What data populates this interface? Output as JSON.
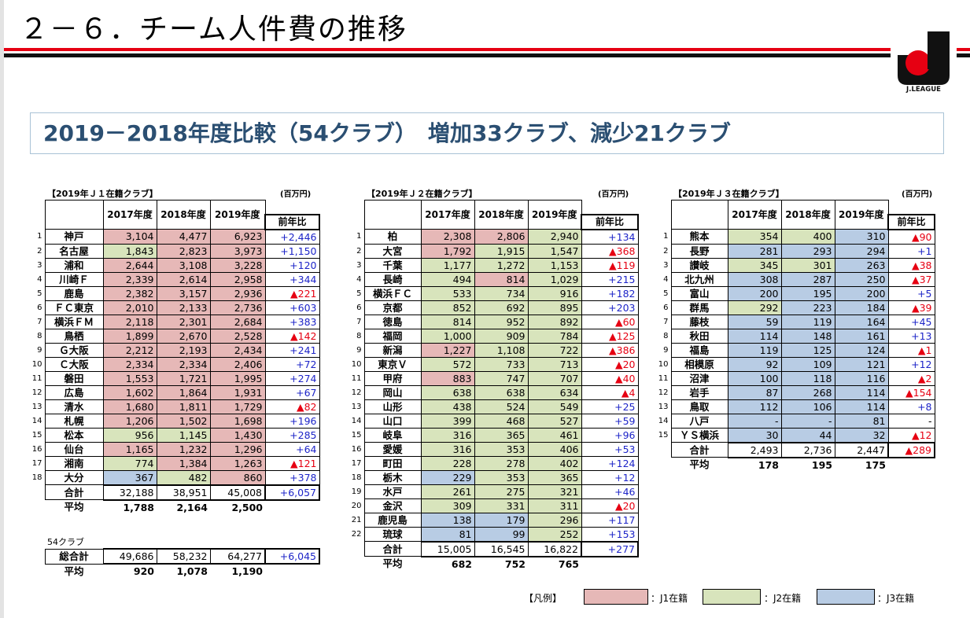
{
  "title": "２－６．チーム人件費の推移",
  "logo_text": "J.LEAGUE",
  "subtitle": "2019－2018年度比較（54クラブ）　増加33クラブ、減少21クラブ",
  "colors": {
    "j1": "#e6b8b7",
    "j2": "#d8e4bc",
    "j3": "#b8cce4",
    "plus": "#1d24c8",
    "minus": "#e60012"
  },
  "headers": {
    "y2017": "2017年度",
    "y2018": "2018年度",
    "y2019": "2019年度",
    "diff": "前年比"
  },
  "j1": {
    "caption": "【2019年Ｊ１在籍クラブ】",
    "unit": "(百万円)",
    "rows": [
      {
        "rank": "1",
        "club": "神戸",
        "v2017": "3,104",
        "c2017": "j1",
        "v2018": "4,477",
        "c2018": "j1",
        "v2019": "6,923",
        "c2019": "j1",
        "diff": "+2,446",
        "sign": "plus"
      },
      {
        "rank": "2",
        "club": "名古屋",
        "v2017": "1,843",
        "c2017": "j2",
        "v2018": "2,823",
        "c2018": "j1",
        "v2019": "3,973",
        "c2019": "j1",
        "diff": "+1,150",
        "sign": "plus"
      },
      {
        "rank": "3",
        "club": "浦和",
        "v2017": "2,644",
        "c2017": "j1",
        "v2018": "3,108",
        "c2018": "j1",
        "v2019": "3,228",
        "c2019": "j1",
        "diff": "+120",
        "sign": "plus"
      },
      {
        "rank": "4",
        "club": "川崎Ｆ",
        "v2017": "2,339",
        "c2017": "j1",
        "v2018": "2,614",
        "c2018": "j1",
        "v2019": "2,958",
        "c2019": "j1",
        "diff": "+344",
        "sign": "plus"
      },
      {
        "rank": "5",
        "club": "鹿島",
        "v2017": "2,382",
        "c2017": "j1",
        "v2018": "3,157",
        "c2018": "j1",
        "v2019": "2,936",
        "c2019": "j1",
        "diff": "▲221",
        "sign": "minus"
      },
      {
        "rank": "6",
        "club": "ＦＣ東京",
        "v2017": "2,010",
        "c2017": "j1",
        "v2018": "2,133",
        "c2018": "j1",
        "v2019": "2,736",
        "c2019": "j1",
        "diff": "+603",
        "sign": "plus"
      },
      {
        "rank": "7",
        "club": "横浜ＦＭ",
        "v2017": "2,118",
        "c2017": "j1",
        "v2018": "2,301",
        "c2018": "j1",
        "v2019": "2,684",
        "c2019": "j1",
        "diff": "+383",
        "sign": "plus"
      },
      {
        "rank": "8",
        "club": "鳥栖",
        "v2017": "1,899",
        "c2017": "j1",
        "v2018": "2,670",
        "c2018": "j1",
        "v2019": "2,528",
        "c2019": "j1",
        "diff": "▲142",
        "sign": "minus"
      },
      {
        "rank": "9",
        "club": "Ｇ大阪",
        "v2017": "2,212",
        "c2017": "j1",
        "v2018": "2,193",
        "c2018": "j1",
        "v2019": "2,434",
        "c2019": "j1",
        "diff": "+241",
        "sign": "plus"
      },
      {
        "rank": "10",
        "club": "Ｃ大阪",
        "v2017": "2,334",
        "c2017": "j1",
        "v2018": "2,334",
        "c2018": "j1",
        "v2019": "2,406",
        "c2019": "j1",
        "diff": "+72",
        "sign": "plus"
      },
      {
        "rank": "11",
        "club": "磐田",
        "v2017": "1,553",
        "c2017": "j1",
        "v2018": "1,721",
        "c2018": "j1",
        "v2019": "1,995",
        "c2019": "j1",
        "diff": "+274",
        "sign": "plus"
      },
      {
        "rank": "12",
        "club": "広島",
        "v2017": "1,602",
        "c2017": "j1",
        "v2018": "1,864",
        "c2018": "j1",
        "v2019": "1,931",
        "c2019": "j1",
        "diff": "+67",
        "sign": "plus"
      },
      {
        "rank": "13",
        "club": "清水",
        "v2017": "1,680",
        "c2017": "j1",
        "v2018": "1,811",
        "c2018": "j1",
        "v2019": "1,729",
        "c2019": "j1",
        "diff": "▲82",
        "sign": "minus"
      },
      {
        "rank": "14",
        "club": "札幌",
        "v2017": "1,206",
        "c2017": "j1",
        "v2018": "1,502",
        "c2018": "j1",
        "v2019": "1,698",
        "c2019": "j1",
        "diff": "+196",
        "sign": "plus"
      },
      {
        "rank": "15",
        "club": "松本",
        "v2017": "956",
        "c2017": "j2",
        "v2018": "1,145",
        "c2018": "j2",
        "v2019": "1,430",
        "c2019": "j1",
        "diff": "+285",
        "sign": "plus"
      },
      {
        "rank": "16",
        "club": "仙台",
        "v2017": "1,165",
        "c2017": "j1",
        "v2018": "1,232",
        "c2018": "j1",
        "v2019": "1,296",
        "c2019": "j1",
        "diff": "+64",
        "sign": "plus"
      },
      {
        "rank": "17",
        "club": "湘南",
        "v2017": "774",
        "c2017": "j2",
        "v2018": "1,384",
        "c2018": "j1",
        "v2019": "1,263",
        "c2019": "j1",
        "diff": "▲121",
        "sign": "minus"
      },
      {
        "rank": "18",
        "club": "大分",
        "v2017": "367",
        "c2017": "j3",
        "v2018": "482",
        "c2018": "j2",
        "v2019": "860",
        "c2019": "j1",
        "diff": "+378",
        "sign": "plus"
      }
    ],
    "total": {
      "label": "合計",
      "v2017": "32,188",
      "v2018": "38,951",
      "v2019": "45,008",
      "diff": "+6,057",
      "sign": "plus"
    },
    "average": {
      "label": "平均",
      "v2017": "1,788",
      "v2018": "2,164",
      "v2019": "2,500"
    },
    "all_caption": "54クラブ",
    "grand_total": {
      "label": "総合計",
      "v2017": "49,686",
      "v2018": "58,232",
      "v2019": "64,277",
      "diff": "+6,045",
      "sign": "plus"
    },
    "grand_average": {
      "label": "平均",
      "v2017": "920",
      "v2018": "1,078",
      "v2019": "1,190"
    }
  },
  "j2": {
    "caption": "【2019年Ｊ２在籍クラブ】",
    "unit": "(百万円)",
    "rows": [
      {
        "rank": "1",
        "club": "柏",
        "v2017": "2,308",
        "c2017": "j1",
        "v2018": "2,806",
        "c2018": "j1",
        "v2019": "2,940",
        "c2019": "j2",
        "diff": "+134",
        "sign": "plus"
      },
      {
        "rank": "2",
        "club": "大宮",
        "v2017": "1,792",
        "c2017": "j1",
        "v2018": "1,915",
        "c2018": "j2",
        "v2019": "1,547",
        "c2019": "j2",
        "diff": "▲368",
        "sign": "minus"
      },
      {
        "rank": "3",
        "club": "千葉",
        "v2017": "1,177",
        "c2017": "j2",
        "v2018": "1,272",
        "c2018": "j2",
        "v2019": "1,153",
        "c2019": "j2",
        "diff": "▲119",
        "sign": "minus"
      },
      {
        "rank": "4",
        "club": "長崎",
        "v2017": "494",
        "c2017": "j2",
        "v2018": "814",
        "c2018": "j1",
        "v2019": "1,029",
        "c2019": "j2",
        "diff": "+215",
        "sign": "plus"
      },
      {
        "rank": "5",
        "club": "横浜ＦＣ",
        "v2017": "533",
        "c2017": "j2",
        "v2018": "734",
        "c2018": "j2",
        "v2019": "916",
        "c2019": "j2",
        "diff": "+182",
        "sign": "plus"
      },
      {
        "rank": "6",
        "club": "京都",
        "v2017": "852",
        "c2017": "j2",
        "v2018": "692",
        "c2018": "j2",
        "v2019": "895",
        "c2019": "j2",
        "diff": "+203",
        "sign": "plus"
      },
      {
        "rank": "7",
        "club": "徳島",
        "v2017": "814",
        "c2017": "j2",
        "v2018": "952",
        "c2018": "j2",
        "v2019": "892",
        "c2019": "j2",
        "diff": "▲60",
        "sign": "minus"
      },
      {
        "rank": "8",
        "club": "福岡",
        "v2017": "1,000",
        "c2017": "j2",
        "v2018": "909",
        "c2018": "j2",
        "v2019": "784",
        "c2019": "j2",
        "diff": "▲125",
        "sign": "minus"
      },
      {
        "rank": "9",
        "club": "新潟",
        "v2017": "1,227",
        "c2017": "j1",
        "v2018": "1,108",
        "c2018": "j2",
        "v2019": "722",
        "c2019": "j2",
        "diff": "▲386",
        "sign": "minus"
      },
      {
        "rank": "10",
        "club": "東京Ｖ",
        "v2017": "572",
        "c2017": "j2",
        "v2018": "733",
        "c2018": "j2",
        "v2019": "713",
        "c2019": "j2",
        "diff": "▲20",
        "sign": "minus"
      },
      {
        "rank": "11",
        "club": "甲府",
        "v2017": "883",
        "c2017": "j1",
        "v2018": "747",
        "c2018": "j2",
        "v2019": "707",
        "c2019": "j2",
        "diff": "▲40",
        "sign": "minus"
      },
      {
        "rank": "12",
        "club": "岡山",
        "v2017": "638",
        "c2017": "j2",
        "v2018": "638",
        "c2018": "j2",
        "v2019": "634",
        "c2019": "j2",
        "diff": "▲4",
        "sign": "minus"
      },
      {
        "rank": "13",
        "club": "山形",
        "v2017": "438",
        "c2017": "j2",
        "v2018": "524",
        "c2018": "j2",
        "v2019": "549",
        "c2019": "j2",
        "diff": "+25",
        "sign": "plus"
      },
      {
        "rank": "14",
        "club": "山口",
        "v2017": "399",
        "c2017": "j2",
        "v2018": "468",
        "c2018": "j2",
        "v2019": "527",
        "c2019": "j2",
        "diff": "+59",
        "sign": "plus"
      },
      {
        "rank": "15",
        "club": "岐阜",
        "v2017": "316",
        "c2017": "j2",
        "v2018": "365",
        "c2018": "j2",
        "v2019": "461",
        "c2019": "j2",
        "diff": "+96",
        "sign": "plus"
      },
      {
        "rank": "16",
        "club": "愛媛",
        "v2017": "316",
        "c2017": "j2",
        "v2018": "353",
        "c2018": "j2",
        "v2019": "406",
        "c2019": "j2",
        "diff": "+53",
        "sign": "plus"
      },
      {
        "rank": "17",
        "club": "町田",
        "v2017": "228",
        "c2017": "j2",
        "v2018": "278",
        "c2018": "j2",
        "v2019": "402",
        "c2019": "j2",
        "diff": "+124",
        "sign": "plus"
      },
      {
        "rank": "18",
        "club": "栃木",
        "v2017": "229",
        "c2017": "j3",
        "v2018": "353",
        "c2018": "j2",
        "v2019": "365",
        "c2019": "j2",
        "diff": "+12",
        "sign": "plus"
      },
      {
        "rank": "19",
        "club": "水戸",
        "v2017": "261",
        "c2017": "j2",
        "v2018": "275",
        "c2018": "j2",
        "v2019": "321",
        "c2019": "j2",
        "diff": "+46",
        "sign": "plus"
      },
      {
        "rank": "20",
        "club": "金沢",
        "v2017": "309",
        "c2017": "j2",
        "v2018": "331",
        "c2018": "j2",
        "v2019": "311",
        "c2019": "j2",
        "diff": "▲20",
        "sign": "minus"
      },
      {
        "rank": "21",
        "club": "鹿児島",
        "v2017": "138",
        "c2017": "j3",
        "v2018": "179",
        "c2018": "j3",
        "v2019": "296",
        "c2019": "j2",
        "diff": "+117",
        "sign": "plus"
      },
      {
        "rank": "22",
        "club": "琉球",
        "v2017": "81",
        "c2017": "j3",
        "v2018": "99",
        "c2018": "j3",
        "v2019": "252",
        "c2019": "j2",
        "diff": "+153",
        "sign": "plus"
      }
    ],
    "total": {
      "label": "合計",
      "v2017": "15,005",
      "v2018": "16,545",
      "v2019": "16,822",
      "diff": "+277",
      "sign": "plus"
    },
    "average": {
      "label": "平均",
      "v2017": "682",
      "v2018": "752",
      "v2019": "765"
    }
  },
  "j3": {
    "caption": "【2019年Ｊ３在籍クラブ】",
    "unit": "(百万円)",
    "rows": [
      {
        "rank": "1",
        "club": "熊本",
        "v2017": "354",
        "c2017": "j2",
        "v2018": "400",
        "c2018": "j2",
        "v2019": "310",
        "c2019": "j3",
        "diff": "▲90",
        "sign": "minus"
      },
      {
        "rank": "2",
        "club": "長野",
        "v2017": "281",
        "c2017": "j3",
        "v2018": "293",
        "c2018": "j3",
        "v2019": "294",
        "c2019": "j3",
        "diff": "+1",
        "sign": "plus"
      },
      {
        "rank": "3",
        "club": "讃岐",
        "v2017": "345",
        "c2017": "j2",
        "v2018": "301",
        "c2018": "j2",
        "v2019": "263",
        "c2019": "j3",
        "diff": "▲38",
        "sign": "minus"
      },
      {
        "rank": "4",
        "club": "北九州",
        "v2017": "308",
        "c2017": "j3",
        "v2018": "287",
        "c2018": "j3",
        "v2019": "250",
        "c2019": "j3",
        "diff": "▲37",
        "sign": "minus"
      },
      {
        "rank": "5",
        "club": "富山",
        "v2017": "200",
        "c2017": "j3",
        "v2018": "195",
        "c2018": "j3",
        "v2019": "200",
        "c2019": "j3",
        "diff": "+5",
        "sign": "plus"
      },
      {
        "rank": "6",
        "club": "群馬",
        "v2017": "292",
        "c2017": "j2",
        "v2018": "223",
        "c2018": "j3",
        "v2019": "184",
        "c2019": "j3",
        "diff": "▲39",
        "sign": "minus"
      },
      {
        "rank": "7",
        "club": "藤枝",
        "v2017": "59",
        "c2017": "j3",
        "v2018": "119",
        "c2018": "j3",
        "v2019": "164",
        "c2019": "j3",
        "diff": "+45",
        "sign": "plus"
      },
      {
        "rank": "8",
        "club": "秋田",
        "v2017": "114",
        "c2017": "j3",
        "v2018": "148",
        "c2018": "j3",
        "v2019": "161",
        "c2019": "j3",
        "diff": "+13",
        "sign": "plus"
      },
      {
        "rank": "9",
        "club": "福島",
        "v2017": "119",
        "c2017": "j3",
        "v2018": "125",
        "c2018": "j3",
        "v2019": "124",
        "c2019": "j3",
        "diff": "▲1",
        "sign": "minus"
      },
      {
        "rank": "10",
        "club": "相模原",
        "v2017": "92",
        "c2017": "j3",
        "v2018": "109",
        "c2018": "j3",
        "v2019": "121",
        "c2019": "j3",
        "diff": "+12",
        "sign": "plus"
      },
      {
        "rank": "11",
        "club": "沼津",
        "v2017": "100",
        "c2017": "j3",
        "v2018": "118",
        "c2018": "j3",
        "v2019": "116",
        "c2019": "j3",
        "diff": "▲2",
        "sign": "minus"
      },
      {
        "rank": "12",
        "club": "岩手",
        "v2017": "87",
        "c2017": "j3",
        "v2018": "268",
        "c2018": "j3",
        "v2019": "114",
        "c2019": "j3",
        "diff": "▲154",
        "sign": "minus"
      },
      {
        "rank": "13",
        "club": "鳥取",
        "v2017": "112",
        "c2017": "j3",
        "v2018": "106",
        "c2018": "j3",
        "v2019": "114",
        "c2019": "j3",
        "diff": "+8",
        "sign": "plus"
      },
      {
        "rank": "14",
        "club": "八戸",
        "v2017": "-",
        "c2017": "j3",
        "v2018": "-",
        "c2018": "j3",
        "v2019": "81",
        "c2019": "j3",
        "diff": "-",
        "sign": "none"
      },
      {
        "rank": "15",
        "club": "ＹＳ横浜",
        "v2017": "30",
        "c2017": "j3",
        "v2018": "44",
        "c2018": "j3",
        "v2019": "32",
        "c2019": "j3",
        "diff": "▲12",
        "sign": "minus"
      }
    ],
    "total": {
      "label": "合計",
      "v2017": "2,493",
      "v2018": "2,736",
      "v2019": "2,447",
      "diff": "▲289",
      "sign": "minus"
    },
    "average": {
      "label": "平均",
      "v2017": "178",
      "v2018": "195",
      "v2019": "175"
    }
  },
  "legend": {
    "label": "【凡例】",
    "j1": "：J1在籍",
    "j2": "：J2在籍",
    "j3": "：J3在籍"
  }
}
